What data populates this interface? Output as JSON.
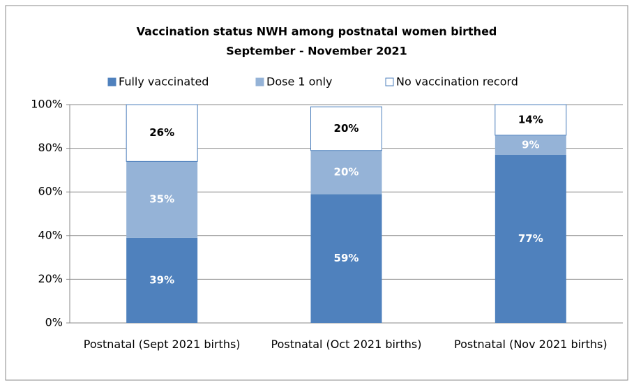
{
  "chart_data": {
    "type": "stacked_bar",
    "title": [
      "Vaccination  status NWH among postnatal women birthed",
      "September - November 2021"
    ],
    "categories": [
      "Postnatal (Sept 2021 births)",
      "Postnatal (Oct 2021 births)",
      "Postnatal (Nov 2021 births)"
    ],
    "series": [
      {
        "name": "Fully vaccinated",
        "color": "#4f81bd",
        "label_color": "#ffffff",
        "values": [
          39,
          59,
          77
        ],
        "value_labels": [
          "39%",
          "59%",
          "77%"
        ]
      },
      {
        "name": "Dose 1 only",
        "color": "#95b3d7",
        "label_color": "#ffffff",
        "values": [
          35,
          20,
          9
        ],
        "value_labels": [
          "35%",
          "20%",
          "9%"
        ]
      },
      {
        "name": "No vaccination record",
        "color": "#ffffff",
        "label_color": "#000000",
        "values": [
          26,
          20,
          14
        ],
        "value_labels": [
          "26%",
          "20%",
          "14%"
        ]
      }
    ],
    "ylim": [
      0,
      100
    ],
    "yticks": [
      {
        "value": 0,
        "label": "0%"
      },
      {
        "value": 20,
        "label": "20%"
      },
      {
        "value": 40,
        "label": "40%"
      },
      {
        "value": 60,
        "label": "60%"
      },
      {
        "value": 80,
        "label": "80%"
      },
      {
        "value": 100,
        "label": "100%"
      }
    ],
    "grid": true,
    "legend": "top"
  }
}
